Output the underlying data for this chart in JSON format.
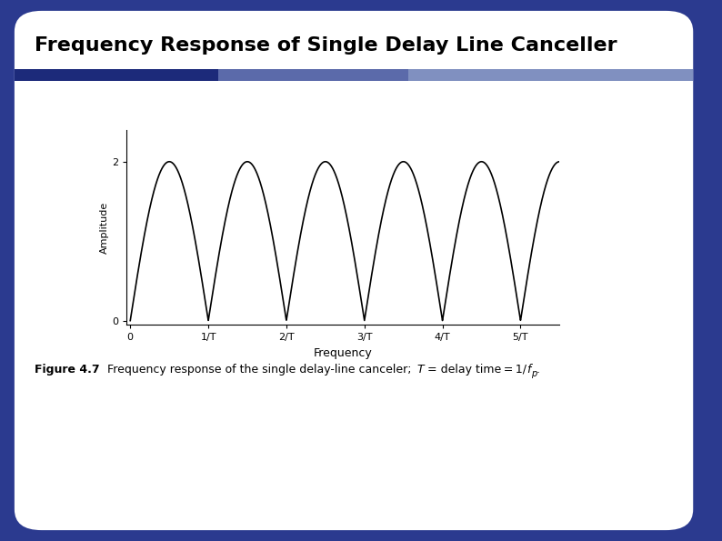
{
  "title": "Frequency Response of Single Delay Line Canceller",
  "title_fontsize": 16,
  "title_fontweight": "bold",
  "title_color": "#000000",
  "slide_bg_color": "#2B3A8F",
  "white_box_bg": "#FFFFFF",
  "plot_bg": "#FFFFFF",
  "xlabel": "Frequency",
  "ylabel": "Amplitude",
  "xlabel_fontsize": 9,
  "ylabel_fontsize": 8,
  "xtick_labels": [
    "0",
    "1/T",
    "2/T",
    "3/T",
    "4/T",
    "5/T"
  ],
  "xtick_positions": [
    0,
    1,
    2,
    3,
    4,
    5
  ],
  "ytick_labels": [
    "0",
    "2"
  ],
  "ytick_positions": [
    0,
    2
  ],
  "ylim": [
    -0.05,
    2.4
  ],
  "xlim": [
    -0.05,
    5.5
  ],
  "line_color": "#000000",
  "line_width": 1.2,
  "caption_fontsize": 9,
  "sep_color_left": "#1C2A7A",
  "sep_color_mid": "#5B6AAA",
  "sep_color_right": "#8090C0"
}
